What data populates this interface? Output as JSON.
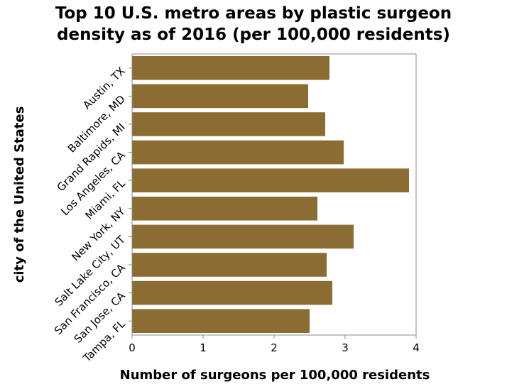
{
  "chart_data": {
    "type": "bar",
    "orientation": "horizontal",
    "title_lines": [
      "Top 10 U.S. metro areas by plastic surgeon",
      "density as of 2016 (per 100,000 residents)"
    ],
    "xlabel": "Number of surgeons per 100,000 residents",
    "ylabel": "city of the United States",
    "categories": [
      "Austin, TX",
      "Baltimore, MD",
      "Grand Rapids, MI",
      "Los Angeles, CA",
      "Miami, FL",
      "New York, NY",
      "Salt Lake City, UT",
      "San Francisco, CA",
      "San Jose, CA",
      "Tampa, FL"
    ],
    "values": [
      2.78,
      2.48,
      2.72,
      2.98,
      3.9,
      2.61,
      3.12,
      2.74,
      2.82,
      2.5
    ],
    "xlim": [
      0,
      4
    ],
    "xticks": [
      "0",
      "1",
      "2",
      "3",
      "4"
    ],
    "grid": false,
    "bar_color": "#8b6d33"
  }
}
